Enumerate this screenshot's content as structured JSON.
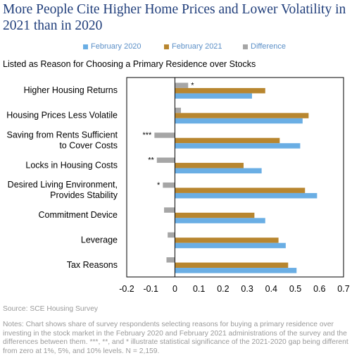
{
  "title": "More People Cite Higher Home Prices and Lower Volatility in 2021 than in 2020",
  "subtitle": "Listed as Reason for Choosing a Primary Residence over Stocks",
  "source": "Source: SCE Housing Survey",
  "notes": "Notes: Chart shows share of survey respondents selecting reasons for buying a primary residence over investing in the stock market in the February 2020 and February 2021 administrations of the survey and the differences between them. ***, **, and * illustrate statistical significance of the 2021-2020 gap being different from zero at 1%, 5%, and 10% levels. N = 2,159.",
  "colors": {
    "feb2020": "#6aaee4",
    "feb2021": "#b8862f",
    "difference": "#a6a6a6",
    "title": "#1f3d7a"
  },
  "chart_data": {
    "type": "bar",
    "orientation": "horizontal",
    "categories": [
      [
        "Higher Housing Returns"
      ],
      [
        "Housing Prices Less Volatile"
      ],
      [
        "Saving from Rents Sufficient",
        "to Cover Costs"
      ],
      [
        "Locks in Housing Costs"
      ],
      [
        "Desired Living Environment,",
        "Provides Stability"
      ],
      [
        "Commitment Device"
      ],
      [
        "Leverage"
      ],
      [
        "Tax Reasons"
      ]
    ],
    "series": [
      {
        "name": "February 2020",
        "values": [
          0.32,
          0.53,
          0.52,
          0.36,
          0.59,
          0.375,
          0.46,
          0.505
        ]
      },
      {
        "name": "February 2021",
        "values": [
          0.375,
          0.555,
          0.435,
          0.285,
          0.54,
          0.33,
          0.43,
          0.47
        ]
      },
      {
        "name": "Difference",
        "values": [
          0.055,
          0.025,
          -0.085,
          -0.075,
          -0.05,
          -0.045,
          -0.03,
          -0.035
        ]
      }
    ],
    "significance": [
      "*",
      "",
      "***",
      "**",
      "*",
      "",
      "",
      ""
    ],
    "xlim": [
      -0.2,
      0.7
    ],
    "xticks": [
      "-0.2",
      "-0.1",
      "0",
      "0.1",
      "0.2",
      "0.3",
      "0.4",
      "0.5",
      "0.6",
      "0.7"
    ],
    "legend_position": "top"
  }
}
